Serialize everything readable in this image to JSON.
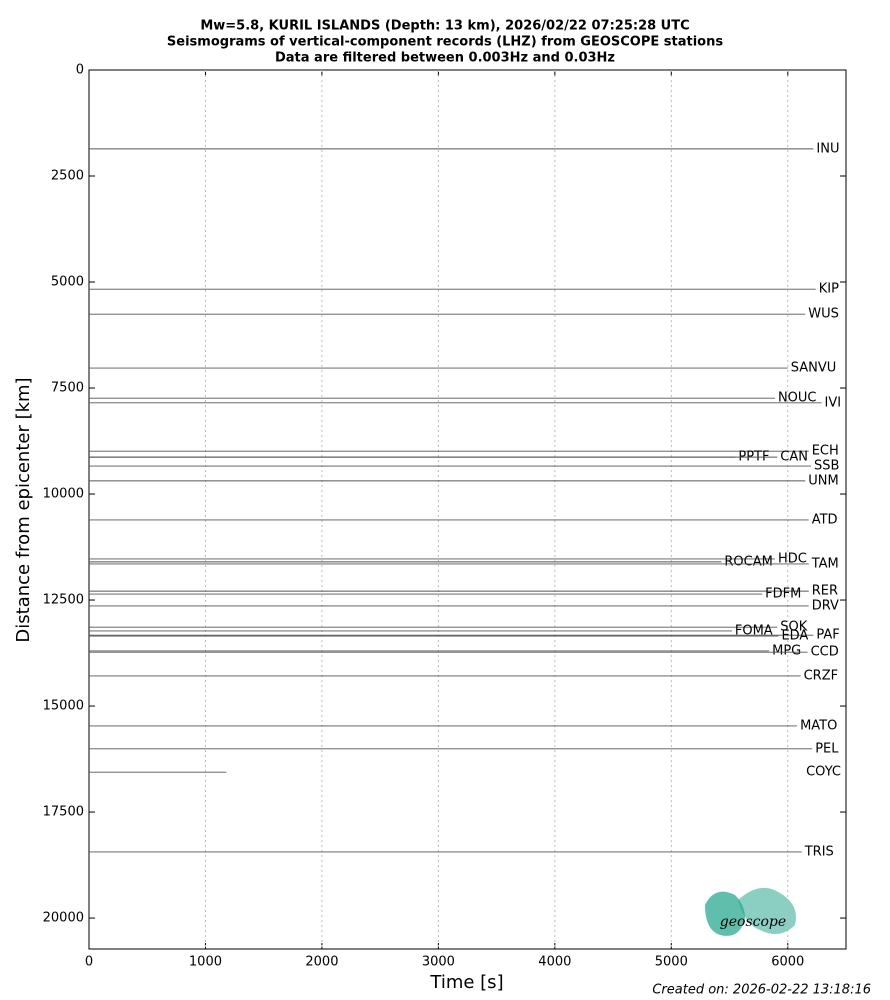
{
  "chart_data": {
    "type": "record-section",
    "title": "Mw=5.8, KURIL ISLANDS (Depth: 13 km), 2026/02/22 07:25:28 UTC",
    "subtitle": [
      "Seismograms of vertical-component records (LHZ) from GEOSCOPE stations",
      "Data are filtered between 0.003Hz and 0.03Hz"
    ],
    "x_label": "Time [s]",
    "y_label": "Distance from epicenter [km]",
    "xlim": [
      0,
      6500
    ],
    "ylim": [
      0,
      20730
    ],
    "y_inverted": true,
    "xticks": [
      0,
      1000,
      2000,
      3000,
      4000,
      5000,
      6000
    ],
    "yticks": [
      0,
      2500,
      5000,
      7500,
      10000,
      12500,
      15000,
      17500,
      20000
    ],
    "grid": "x",
    "color": "#555555",
    "stations": [
      {
        "name": "INU",
        "distance": 1860,
        "end": 6220
      },
      {
        "name": "KIP",
        "distance": 5170,
        "end": 6240
      },
      {
        "name": "WUS",
        "distance": 5760,
        "end": 6150
      },
      {
        "name": "SANVU",
        "distance": 7030,
        "end": 6000
      },
      {
        "name": "NOUC",
        "distance": 7740,
        "end": 5890
      },
      {
        "name": "IVI",
        "distance": 7850,
        "end": 6290
      },
      {
        "name": "ECH",
        "distance": 8990,
        "end": 6180
      },
      {
        "name": "PPTF",
        "distance": 9130,
        "end": 5550
      },
      {
        "name": "CAN",
        "distance": 9130,
        "end": 5910
      },
      {
        "name": "SSB",
        "distance": 9340,
        "end": 6200
      },
      {
        "name": "UNM",
        "distance": 9690,
        "end": 6150
      },
      {
        "name": "ATD",
        "distance": 10610,
        "end": 6180
      },
      {
        "name": "HDC",
        "distance": 11530,
        "end": 5890
      },
      {
        "name": "ROCAM",
        "distance": 11600,
        "end": 5430
      },
      {
        "name": "TAM",
        "distance": 11650,
        "end": 6180
      },
      {
        "name": "RER",
        "distance": 12290,
        "end": 6180
      },
      {
        "name": "FDFM",
        "distance": 12360,
        "end": 5780
      },
      {
        "name": "DRV",
        "distance": 12640,
        "end": 6180
      },
      {
        "name": "SOK",
        "distance": 13140,
        "end": 5910
      },
      {
        "name": "FOMA",
        "distance": 13230,
        "end": 5520
      },
      {
        "name": "PAF",
        "distance": 13330,
        "end": 6220
      },
      {
        "name": "EDA",
        "distance": 13350,
        "end": 5920
      },
      {
        "name": "MPG",
        "distance": 13700,
        "end": 5840
      },
      {
        "name": "CCD",
        "distance": 13730,
        "end": 6170
      },
      {
        "name": "CRZF",
        "distance": 14290,
        "end": 6110
      },
      {
        "name": "MATO",
        "distance": 15470,
        "end": 6080
      },
      {
        "name": "PEL",
        "distance": 16010,
        "end": 6210
      },
      {
        "name": "COYC",
        "distance": 16560,
        "end": 1180
      },
      {
        "name": "TRIS",
        "distance": 18440,
        "end": 6120
      }
    ],
    "logo": "geoscope",
    "footer": "Created on: 2026-02-22 13:18:16"
  }
}
